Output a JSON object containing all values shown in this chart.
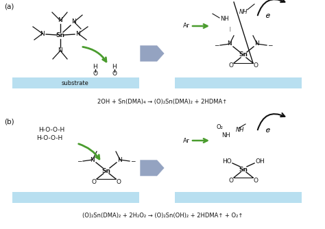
{
  "fig_width": 4.74,
  "fig_height": 3.34,
  "dpi": 100,
  "bg_color": "#ffffff",
  "substrate_color": "#b8dff0",
  "arrow_green": "#4a9c2e",
  "arrow_gray": "#8899bb",
  "text_color": "#111111",
  "equation_a": "2OH + Sn(DMA)₄ → (O)₂Sn(DMA)₂ + 2HDMA↑",
  "equation_b": "(O)₂Sn(DMA)₂ + 2H₂O₂ → (O)₂Sn(OH)₂ + 2HDMA↑ + O₂↑",
  "label_a": "(a)",
  "label_b": "(b)"
}
